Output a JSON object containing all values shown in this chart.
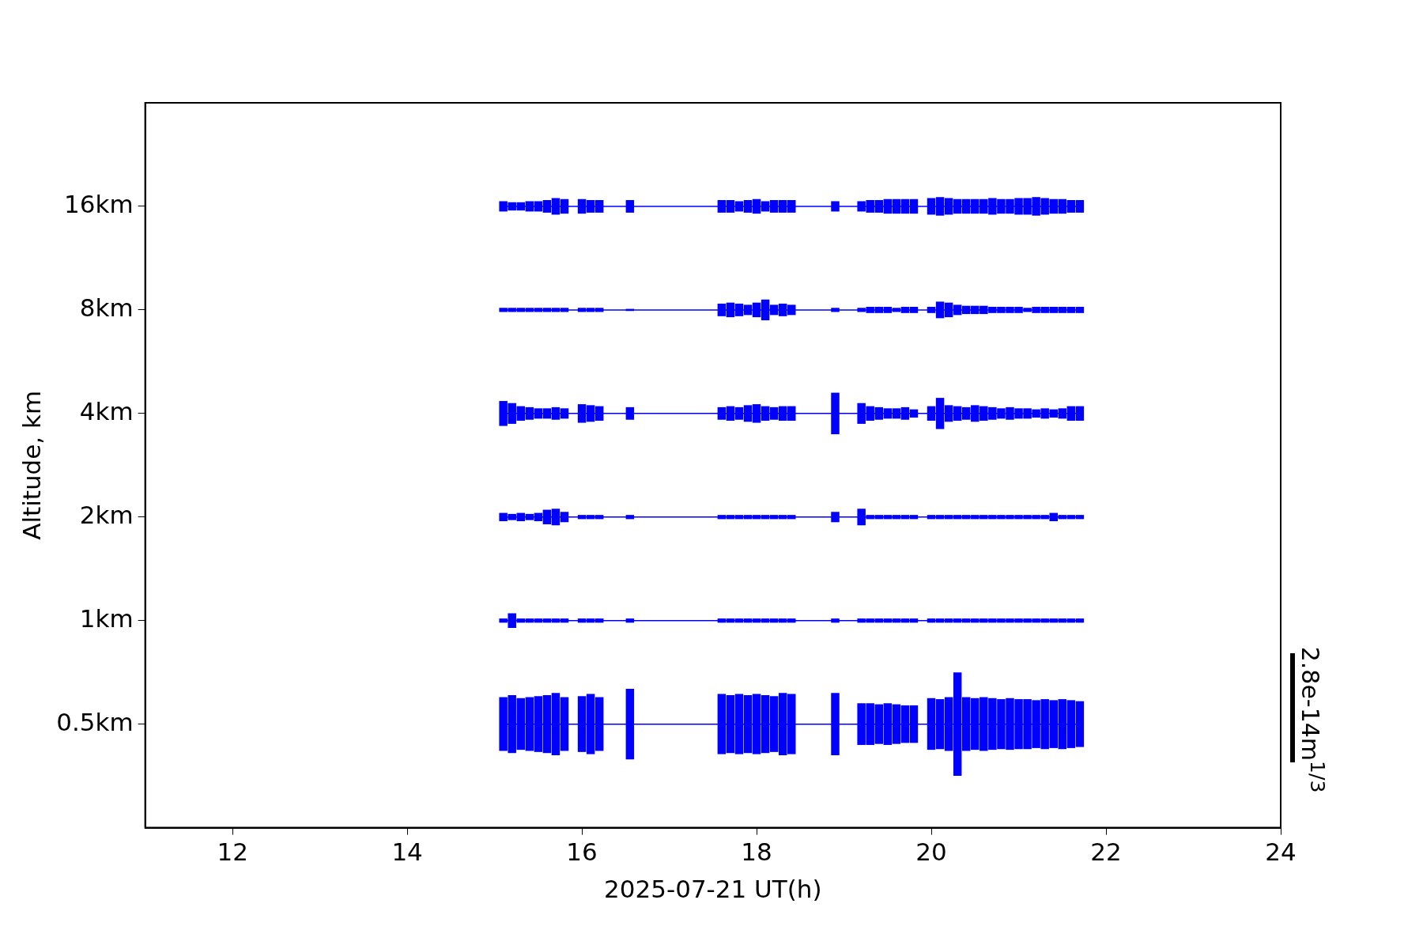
{
  "chart_data": {
    "type": "line",
    "xlabel": "2025-07-21 UT(h)",
    "ylabel": "Altitude, km",
    "xlim": [
      11,
      24
    ],
    "xticks": [
      12,
      14,
      16,
      18,
      20,
      22,
      24
    ],
    "log": "y",
    "ylim": [
      0.25,
      32
    ],
    "yticks": [
      {
        "value": 0.5,
        "label": "0.5km"
      },
      {
        "value": 1,
        "label": "1km"
      },
      {
        "value": 2,
        "label": "2km"
      },
      {
        "value": 4,
        "label": "4km"
      },
      {
        "value": 8,
        "label": "8km"
      },
      {
        "value": 16,
        "label": "16km"
      }
    ],
    "grid": false,
    "legend": false,
    "marker": "none",
    "line_style": "solid",
    "annotations": [
      "2.8e-14m$^{1/3}$"
    ],
    "x": [
      15.1,
      15.2,
      15.3,
      15.4,
      15.5,
      15.6,
      15.7,
      15.8,
      15.9,
      16.0,
      16.1,
      16.2,
      16.3,
      16.4,
      16.55,
      16.6,
      16.7,
      16.8,
      16.9,
      17.0,
      17.1,
      17.2,
      17.3,
      17.4,
      17.5,
      17.6,
      17.7,
      17.8,
      17.9,
      18.0,
      18.1,
      18.2,
      18.3,
      18.4,
      18.5,
      18.6,
      18.7,
      18.8,
      18.9,
      19.0,
      19.1,
      19.2,
      19.3,
      19.4,
      19.5,
      19.6,
      19.7,
      19.8,
      19.9,
      20.0,
      20.1,
      20.2,
      20.3,
      20.4,
      20.5,
      20.6,
      20.7,
      20.8,
      20.9,
      21.0,
      21.1,
      21.2,
      21.3,
      21.4,
      21.5,
      21.6,
      21.7
    ],
    "series": [
      {
        "color": "#0000ff",
        "values": [
          0.5,
          0.5,
          0.5,
          0.5,
          0.5,
          0.5,
          0.5,
          0.5,
          0.5,
          0.5,
          0.5,
          0.5,
          0.5,
          0.5,
          0.5,
          0.5,
          0.5,
          0.5,
          0.5,
          0.5,
          0.5,
          0.5,
          0.5,
          0.5,
          0.5,
          0.5,
          0.5,
          0.5,
          0.5,
          0.5,
          0.5,
          0.5,
          0.5,
          0.5,
          0.5,
          0.5,
          0.5,
          0.5,
          0.5,
          0.5,
          0.5,
          0.5,
          0.5,
          0.5,
          0.5,
          0.5,
          0.5,
          0.5,
          0.5,
          0.5,
          0.5,
          0.5,
          0.5,
          0.5,
          0.5,
          0.5,
          0.5,
          0.5,
          0.5,
          0.5,
          0.5,
          0.5,
          0.5,
          0.5,
          0.5,
          0.5,
          0.5
        ],
        "errors": [
          [
            0.418,
            0.599
          ],
          [
            0.412,
            0.607
          ],
          [
            0.421,
            0.595
          ],
          [
            0.418,
            0.599
          ],
          [
            0.415,
            0.603
          ],
          [
            0.412,
            0.607
          ],
          [
            0.406,
            0.616
          ],
          [
            0.418,
            0.599
          ],
          null,
          [
            0.415,
            0.603
          ],
          [
            0.409,
            0.612
          ],
          [
            0.418,
            0.599
          ],
          null,
          null,
          [
            0.395,
            0.633
          ],
          null,
          null,
          null,
          null,
          null,
          null,
          null,
          null,
          null,
          null,
          [
            0.409,
            0.612
          ],
          [
            0.412,
            0.607
          ],
          [
            0.409,
            0.612
          ],
          [
            0.412,
            0.607
          ],
          [
            0.409,
            0.612
          ],
          [
            0.412,
            0.607
          ],
          [
            0.415,
            0.603
          ],
          [
            0.406,
            0.616
          ],
          [
            0.409,
            0.612
          ],
          null,
          null,
          null,
          null,
          [
            0.406,
            0.616
          ],
          null,
          null,
          [
            0.435,
            0.575
          ],
          [
            0.435,
            0.575
          ],
          [
            0.438,
            0.571
          ],
          [
            0.435,
            0.575
          ],
          [
            0.438,
            0.571
          ],
          [
            0.441,
            0.567
          ],
          [
            0.441,
            0.567
          ],
          null,
          [
            0.421,
            0.595
          ],
          [
            0.423,
            0.591
          ],
          [
            0.418,
            0.599
          ],
          [
            0.354,
            0.707
          ],
          [
            0.418,
            0.599
          ],
          [
            0.421,
            0.595
          ],
          [
            0.418,
            0.599
          ],
          [
            0.421,
            0.595
          ],
          [
            0.423,
            0.591
          ],
          [
            0.421,
            0.595
          ],
          [
            0.423,
            0.591
          ],
          [
            0.423,
            0.591
          ],
          [
            0.426,
            0.587
          ],
          [
            0.423,
            0.591
          ],
          [
            0.426,
            0.587
          ],
          [
            0.423,
            0.591
          ],
          [
            0.426,
            0.587
          ],
          [
            0.429,
            0.583
          ]
        ]
      },
      {
        "color": "#0000ff",
        "values": [
          1,
          1,
          1,
          1,
          1,
          1,
          1,
          1,
          1,
          1,
          1,
          1,
          1,
          1,
          1,
          1,
          1,
          1,
          1,
          1,
          1,
          1,
          1,
          1,
          1,
          1,
          1,
          1,
          1,
          1,
          1,
          1,
          1,
          1,
          1,
          1,
          1,
          1,
          1,
          1,
          1,
          1,
          1,
          1,
          1,
          1,
          1,
          1,
          1,
          1,
          1,
          1,
          1,
          1,
          1,
          1,
          1,
          1,
          1,
          1,
          1,
          1,
          1,
          1,
          1,
          1,
          1
        ],
        "errors": [
          [
            0.986,
            1.014
          ],
          [
            0.952,
            1.05
          ],
          [
            0.986,
            1.014
          ],
          [
            0.986,
            1.014
          ],
          [
            0.986,
            1.014
          ],
          [
            0.986,
            1.014
          ],
          [
            0.986,
            1.014
          ],
          [
            0.986,
            1.014
          ],
          null,
          [
            0.986,
            1.014
          ],
          [
            0.986,
            1.014
          ],
          [
            0.986,
            1.014
          ],
          null,
          null,
          [
            0.986,
            1.014
          ],
          null,
          null,
          null,
          null,
          null,
          null,
          null,
          null,
          null,
          null,
          [
            0.986,
            1.014
          ],
          [
            0.986,
            1.014
          ],
          [
            0.986,
            1.014
          ],
          [
            0.986,
            1.014
          ],
          [
            0.986,
            1.014
          ],
          [
            0.986,
            1.014
          ],
          [
            0.986,
            1.014
          ],
          [
            0.986,
            1.014
          ],
          [
            0.986,
            1.014
          ],
          null,
          null,
          null,
          null,
          [
            0.986,
            1.014
          ],
          null,
          null,
          [
            0.986,
            1.014
          ],
          [
            0.986,
            1.014
          ],
          [
            0.986,
            1.014
          ],
          [
            0.986,
            1.014
          ],
          [
            0.986,
            1.014
          ],
          [
            0.986,
            1.014
          ],
          [
            0.986,
            1.014
          ],
          null,
          [
            0.986,
            1.014
          ],
          [
            0.986,
            1.014
          ],
          [
            0.986,
            1.014
          ],
          [
            0.986,
            1.014
          ],
          [
            0.986,
            1.014
          ],
          [
            0.986,
            1.014
          ],
          [
            0.986,
            1.014
          ],
          [
            0.986,
            1.014
          ],
          [
            0.986,
            1.014
          ],
          [
            0.986,
            1.014
          ],
          [
            0.986,
            1.014
          ],
          [
            0.986,
            1.014
          ],
          [
            0.986,
            1.014
          ],
          [
            0.986,
            1.014
          ],
          [
            0.986,
            1.014
          ],
          [
            0.986,
            1.014
          ],
          [
            0.986,
            1.014
          ],
          [
            0.986,
            1.014
          ]
        ]
      },
      {
        "color": "#0000ff",
        "values": [
          2,
          2,
          2,
          2,
          2,
          2,
          2,
          2,
          2,
          2,
          2,
          2,
          2,
          2,
          2,
          2,
          2,
          2,
          2,
          2,
          2,
          2,
          2,
          2,
          2,
          2,
          2,
          2,
          2,
          2,
          2,
          2,
          2,
          2,
          2,
          2,
          2,
          2,
          2,
          2,
          2,
          2,
          2,
          2,
          2,
          2,
          2,
          2,
          2,
          2,
          2,
          2,
          2,
          2,
          2,
          2,
          2,
          2,
          2,
          2,
          2,
          2,
          2,
          2,
          2,
          2,
          2
        ],
        "errors": [
          [
            1.945,
            2.056
          ],
          [
            1.959,
            2.042
          ],
          [
            1.945,
            2.056
          ],
          [
            1.959,
            2.042
          ],
          [
            1.945,
            2.056
          ],
          [
            1.905,
            2.1
          ],
          [
            1.892,
            2.114
          ],
          [
            1.932,
            2.07
          ],
          null,
          [
            1.972,
            2.028
          ],
          [
            1.972,
            2.028
          ],
          [
            1.972,
            2.028
          ],
          null,
          null,
          [
            1.972,
            2.028
          ],
          null,
          null,
          null,
          null,
          null,
          null,
          null,
          null,
          null,
          null,
          [
            1.972,
            2.028
          ],
          [
            1.972,
            2.028
          ],
          [
            1.972,
            2.028
          ],
          [
            1.972,
            2.028
          ],
          [
            1.972,
            2.028
          ],
          [
            1.972,
            2.028
          ],
          [
            1.972,
            2.028
          ],
          [
            1.972,
            2.028
          ],
          [
            1.972,
            2.028
          ],
          null,
          null,
          null,
          null,
          [
            1.932,
            2.07
          ],
          null,
          null,
          [
            1.892,
            2.114
          ],
          [
            1.972,
            2.028
          ],
          [
            1.972,
            2.028
          ],
          [
            1.972,
            2.028
          ],
          [
            1.972,
            2.028
          ],
          [
            1.972,
            2.028
          ],
          [
            1.972,
            2.028
          ],
          null,
          [
            1.972,
            2.028
          ],
          [
            1.972,
            2.028
          ],
          [
            1.972,
            2.028
          ],
          [
            1.972,
            2.028
          ],
          [
            1.972,
            2.028
          ],
          [
            1.972,
            2.028
          ],
          [
            1.972,
            2.028
          ],
          [
            1.972,
            2.028
          ],
          [
            1.972,
            2.028
          ],
          [
            1.972,
            2.028
          ],
          [
            1.972,
            2.028
          ],
          [
            1.972,
            2.028
          ],
          [
            1.972,
            2.028
          ],
          [
            1.972,
            2.028
          ],
          [
            1.945,
            2.056
          ],
          [
            1.972,
            2.028
          ],
          [
            1.972,
            2.028
          ],
          [
            1.972,
            2.028
          ]
        ]
      },
      {
        "color": "#0000ff",
        "values": [
          4,
          4,
          4,
          4,
          4,
          4,
          4,
          4,
          4,
          4,
          4,
          4,
          4,
          4,
          4,
          4,
          4,
          4,
          4,
          4,
          4,
          4,
          4,
          4,
          4,
          4,
          4,
          4,
          4,
          4,
          4,
          4,
          4,
          4,
          4,
          4,
          4,
          4,
          4,
          4,
          4,
          4,
          4,
          4,
          4,
          4,
          4,
          4,
          4,
          4,
          4,
          4,
          4,
          4,
          4,
          4,
          4,
          4,
          4,
          4,
          4,
          4,
          4,
          4,
          4,
          4,
          4
        ],
        "errors": [
          [
            3.68,
            4.348
          ],
          [
            3.732,
            4.288
          ],
          [
            3.81,
            4.2
          ],
          [
            3.836,
            4.172
          ],
          [
            3.864,
            4.14
          ],
          [
            3.864,
            4.14
          ],
          [
            3.836,
            4.172
          ],
          [
            3.864,
            4.14
          ],
          null,
          [
            3.759,
            4.256
          ],
          [
            3.784,
            4.228
          ],
          [
            3.81,
            4.2
          ],
          null,
          null,
          [
            3.836,
            4.172
          ],
          null,
          null,
          null,
          null,
          null,
          null,
          null,
          null,
          null,
          null,
          [
            3.836,
            4.172
          ],
          [
            3.81,
            4.2
          ],
          [
            3.836,
            4.172
          ],
          [
            3.784,
            4.228
          ],
          [
            3.759,
            4.256
          ],
          [
            3.81,
            4.2
          ],
          [
            3.836,
            4.172
          ],
          [
            3.81,
            4.2
          ],
          [
            3.81,
            4.2
          ],
          null,
          null,
          null,
          null,
          [
            3.481,
            4.596
          ],
          null,
          null,
          [
            3.732,
            4.288
          ],
          [
            3.81,
            4.2
          ],
          [
            3.836,
            4.172
          ],
          [
            3.864,
            4.14
          ],
          [
            3.864,
            4.14
          ],
          [
            3.836,
            4.172
          ],
          [
            3.891,
            4.112
          ],
          null,
          [
            3.81,
            4.2
          ],
          [
            3.604,
            4.44
          ],
          [
            3.784,
            4.228
          ],
          [
            3.81,
            4.2
          ],
          [
            3.836,
            4.172
          ],
          [
            3.784,
            4.228
          ],
          [
            3.81,
            4.2
          ],
          [
            3.836,
            4.172
          ],
          [
            3.864,
            4.14
          ],
          [
            3.836,
            4.172
          ],
          [
            3.864,
            4.14
          ],
          [
            3.864,
            4.14
          ],
          [
            3.891,
            4.112
          ],
          [
            3.864,
            4.14
          ],
          [
            3.891,
            4.112
          ],
          [
            3.864,
            4.14
          ],
          [
            3.81,
            4.2
          ],
          [
            3.81,
            4.2
          ]
        ]
      },
      {
        "color": "#0000ff",
        "values": [
          8,
          8,
          8,
          8,
          8,
          8,
          8,
          8,
          8,
          8,
          8,
          8,
          8,
          8,
          8,
          8,
          8,
          8,
          8,
          8,
          8,
          8,
          8,
          8,
          8,
          8,
          8,
          8,
          8,
          8,
          8,
          8,
          8,
          8,
          8,
          8,
          8,
          8,
          8,
          8,
          8,
          8,
          8,
          8,
          8,
          8,
          8,
          8,
          8,
          8,
          8,
          8,
          8,
          8,
          8,
          8,
          8,
          8,
          8,
          8,
          8,
          8,
          8,
          8,
          8,
          8,
          8
        ],
        "errors": [
          [
            7.89,
            8.112
          ],
          [
            7.89,
            8.112
          ],
          [
            7.89,
            8.112
          ],
          [
            7.89,
            8.112
          ],
          [
            7.89,
            8.112
          ],
          [
            7.89,
            8.112
          ],
          [
            7.89,
            8.112
          ],
          [
            7.89,
            8.112
          ],
          null,
          [
            7.89,
            8.112
          ],
          [
            7.89,
            8.112
          ],
          [
            7.89,
            8.112
          ],
          null,
          null,
          [
            7.944,
            8.056
          ],
          null,
          null,
          null,
          null,
          null,
          null,
          null,
          null,
          null,
          null,
          [
            7.67,
            8.344
          ],
          [
            7.619,
            8.4
          ],
          [
            7.67,
            8.344
          ],
          [
            7.73,
            8.28
          ],
          [
            7.619,
            8.4
          ],
          [
            7.463,
            8.576
          ],
          [
            7.73,
            8.28
          ],
          [
            7.67,
            8.344
          ],
          [
            7.73,
            8.28
          ],
          null,
          null,
          null,
          null,
          [
            7.89,
            8.112
          ],
          null,
          null,
          [
            7.89,
            8.112
          ],
          [
            7.835,
            8.168
          ],
          [
            7.835,
            8.168
          ],
          [
            7.835,
            8.168
          ],
          [
            7.89,
            8.112
          ],
          [
            7.835,
            8.168
          ],
          [
            7.835,
            8.168
          ],
          null,
          [
            7.835,
            8.168
          ],
          [
            7.568,
            8.456
          ],
          [
            7.619,
            8.4
          ],
          [
            7.73,
            8.28
          ],
          [
            7.782,
            8.224
          ],
          [
            7.782,
            8.224
          ],
          [
            7.782,
            8.224
          ],
          [
            7.835,
            8.168
          ],
          [
            7.835,
            8.168
          ],
          [
            7.835,
            8.168
          ],
          [
            7.835,
            8.168
          ],
          [
            7.89,
            8.112
          ],
          [
            7.835,
            8.168
          ],
          [
            7.835,
            8.168
          ],
          [
            7.835,
            8.168
          ],
          [
            7.835,
            8.168
          ],
          [
            7.835,
            8.168
          ],
          [
            7.835,
            8.168
          ]
        ]
      },
      {
        "color": "#0000ff",
        "values": [
          16,
          16,
          16,
          16,
          16,
          16,
          16,
          16,
          16,
          16,
          16,
          16,
          16,
          16,
          16,
          16,
          16,
          16,
          16,
          16,
          16,
          16,
          16,
          16,
          16,
          16,
          16,
          16,
          16,
          16,
          16,
          16,
          16,
          16,
          16,
          16,
          16,
          16,
          16,
          16,
          16,
          16,
          16,
          16,
          16,
          16,
          16,
          16,
          16,
          16,
          16,
          16,
          16,
          16,
          16,
          16,
          16,
          16,
          16,
          16,
          16,
          16,
          16,
          16,
          16,
          16,
          16
        ],
        "errors": [
          [
            15.459,
            16.56
          ],
          [
            15.564,
            16.448
          ],
          [
            15.564,
            16.448
          ],
          [
            15.459,
            16.56
          ],
          [
            15.459,
            16.56
          ],
          [
            15.34,
            16.688
          ],
          [
            15.137,
            16.912
          ],
          [
            15.238,
            16.8
          ],
          null,
          [
            15.238,
            16.8
          ],
          [
            15.34,
            16.688
          ],
          [
            15.34,
            16.688
          ],
          null,
          null,
          [
            15.34,
            16.688
          ],
          null,
          null,
          null,
          null,
          null,
          null,
          null,
          null,
          null,
          null,
          [
            15.34,
            16.688
          ],
          [
            15.34,
            16.688
          ],
          [
            15.459,
            16.56
          ],
          [
            15.34,
            16.688
          ],
          [
            15.238,
            16.8
          ],
          [
            15.459,
            16.56
          ],
          [
            15.34,
            16.688
          ],
          [
            15.34,
            16.688
          ],
          [
            15.34,
            16.688
          ],
          null,
          null,
          null,
          null,
          [
            15.459,
            16.56
          ],
          null,
          null,
          [
            15.459,
            16.56
          ],
          [
            15.34,
            16.688
          ],
          [
            15.34,
            16.688
          ],
          [
            15.238,
            16.8
          ],
          [
            15.238,
            16.8
          ],
          [
            15.238,
            16.8
          ],
          [
            15.238,
            16.8
          ],
          null,
          [
            15.137,
            16.912
          ],
          [
            15.038,
            17.024
          ],
          [
            15.137,
            16.912
          ],
          [
            15.238,
            16.8
          ],
          [
            15.238,
            16.8
          ],
          [
            15.238,
            16.8
          ],
          [
            15.238,
            16.8
          ],
          [
            15.137,
            16.912
          ],
          [
            15.238,
            16.8
          ],
          [
            15.238,
            16.8
          ],
          [
            15.137,
            16.912
          ],
          [
            15.137,
            16.912
          ],
          [
            15.038,
            17.024
          ],
          [
            15.137,
            16.912
          ],
          [
            15.238,
            16.8
          ],
          [
            15.238,
            16.8
          ],
          [
            15.34,
            16.688
          ],
          [
            15.34,
            16.688
          ]
        ]
      }
    ]
  }
}
